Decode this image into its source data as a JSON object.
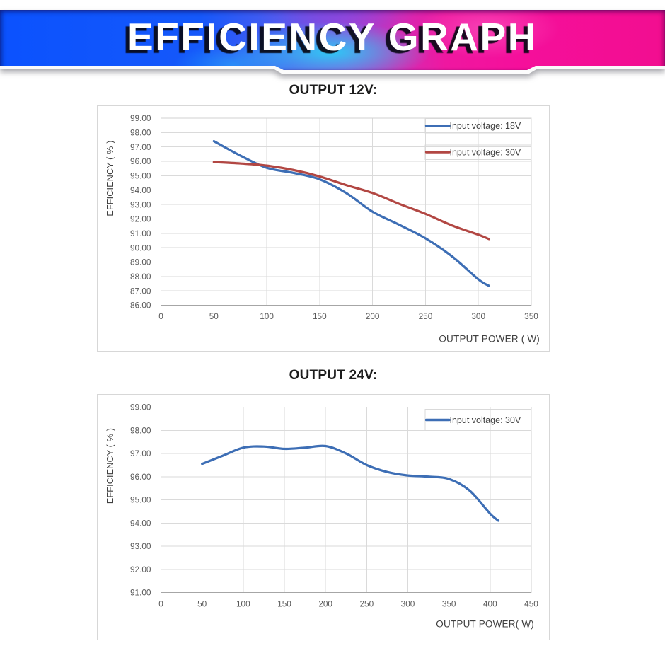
{
  "banner": {
    "title": "EFFICIENCY GRAPH",
    "gradient_left_color": "#2251e9",
    "gradient_right_color": "#f20e90",
    "text_color": "#ffffff"
  },
  "chart_data": [
    {
      "type": "line",
      "title": "OUTPUT 12V:",
      "xlabel": "OUTPUT POWER ( W)",
      "ylabel": "EFFICIENCY ( % )",
      "xlim": [
        0,
        350
      ],
      "ylim": [
        86,
        99
      ],
      "x_tick_step": 50,
      "y_tick_step": 1,
      "x_tick_labels": [
        "0",
        "50",
        "100",
        "150",
        "200",
        "250",
        "300",
        "350"
      ],
      "y_tick_labels": [
        "99.00",
        "98.00",
        "97.00",
        "96.00",
        "95.00",
        "94.00",
        "93.00",
        "92.00",
        "91.00",
        "90.00",
        "89.00",
        "88.00",
        "87.00",
        "86.00"
      ],
      "grid": true,
      "legend_position": "top-right",
      "series": [
        {
          "name": "Input voltage: 18V",
          "color": "#3d6eb5",
          "x": [
            50,
            75,
            100,
            125,
            150,
            175,
            200,
            225,
            250,
            275,
            300,
            310
          ],
          "values": [
            97.4,
            96.4,
            95.55,
            95.2,
            94.75,
            93.8,
            92.5,
            91.6,
            90.65,
            89.4,
            87.8,
            87.35
          ]
        },
        {
          "name": "Input voltage: 30V",
          "color": "#b24743",
          "x": [
            50,
            75,
            100,
            125,
            150,
            175,
            200,
            225,
            250,
            275,
            300,
            310
          ],
          "values": [
            95.95,
            95.85,
            95.7,
            95.4,
            94.95,
            94.35,
            93.8,
            93.05,
            92.35,
            91.55,
            90.9,
            90.6
          ]
        }
      ]
    },
    {
      "type": "line",
      "title": "OUTPUT 24V:",
      "xlabel": "OUTPUT POWER( W)",
      "ylabel": "EFFICIENCY ( % )",
      "xlim": [
        0,
        450
      ],
      "ylim": [
        91,
        99
      ],
      "x_tick_step": 50,
      "y_tick_step": 1,
      "x_tick_labels": [
        "0",
        "50",
        "100",
        "150",
        "200",
        "250",
        "300",
        "350",
        "400",
        "450"
      ],
      "y_tick_labels": [
        "99.00",
        "98.00",
        "97.00",
        "96.00",
        "95.00",
        "94.00",
        "93.00",
        "92.00",
        "91.00"
      ],
      "grid": true,
      "legend_position": "top-right",
      "series": [
        {
          "name": "Input voltage: 30V",
          "color": "#3d6eb5",
          "x": [
            50,
            75,
            100,
            125,
            150,
            175,
            200,
            225,
            250,
            275,
            300,
            325,
            350,
            375,
            400,
            410
          ],
          "values": [
            96.55,
            96.9,
            97.25,
            97.3,
            97.2,
            97.25,
            97.32,
            97.0,
            96.5,
            96.2,
            96.05,
            96.0,
            95.9,
            95.4,
            94.4,
            94.1
          ]
        }
      ]
    }
  ],
  "style": {
    "gridline_color": "#dadada",
    "plot_border_color": "#d2d2d2",
    "axis_line_color": "#a6a6a6",
    "tick_label_color": "#595959",
    "axis_title_color": "#404040",
    "legend_text_color": "#404040",
    "legend_border_color": "#d9d9d9"
  }
}
